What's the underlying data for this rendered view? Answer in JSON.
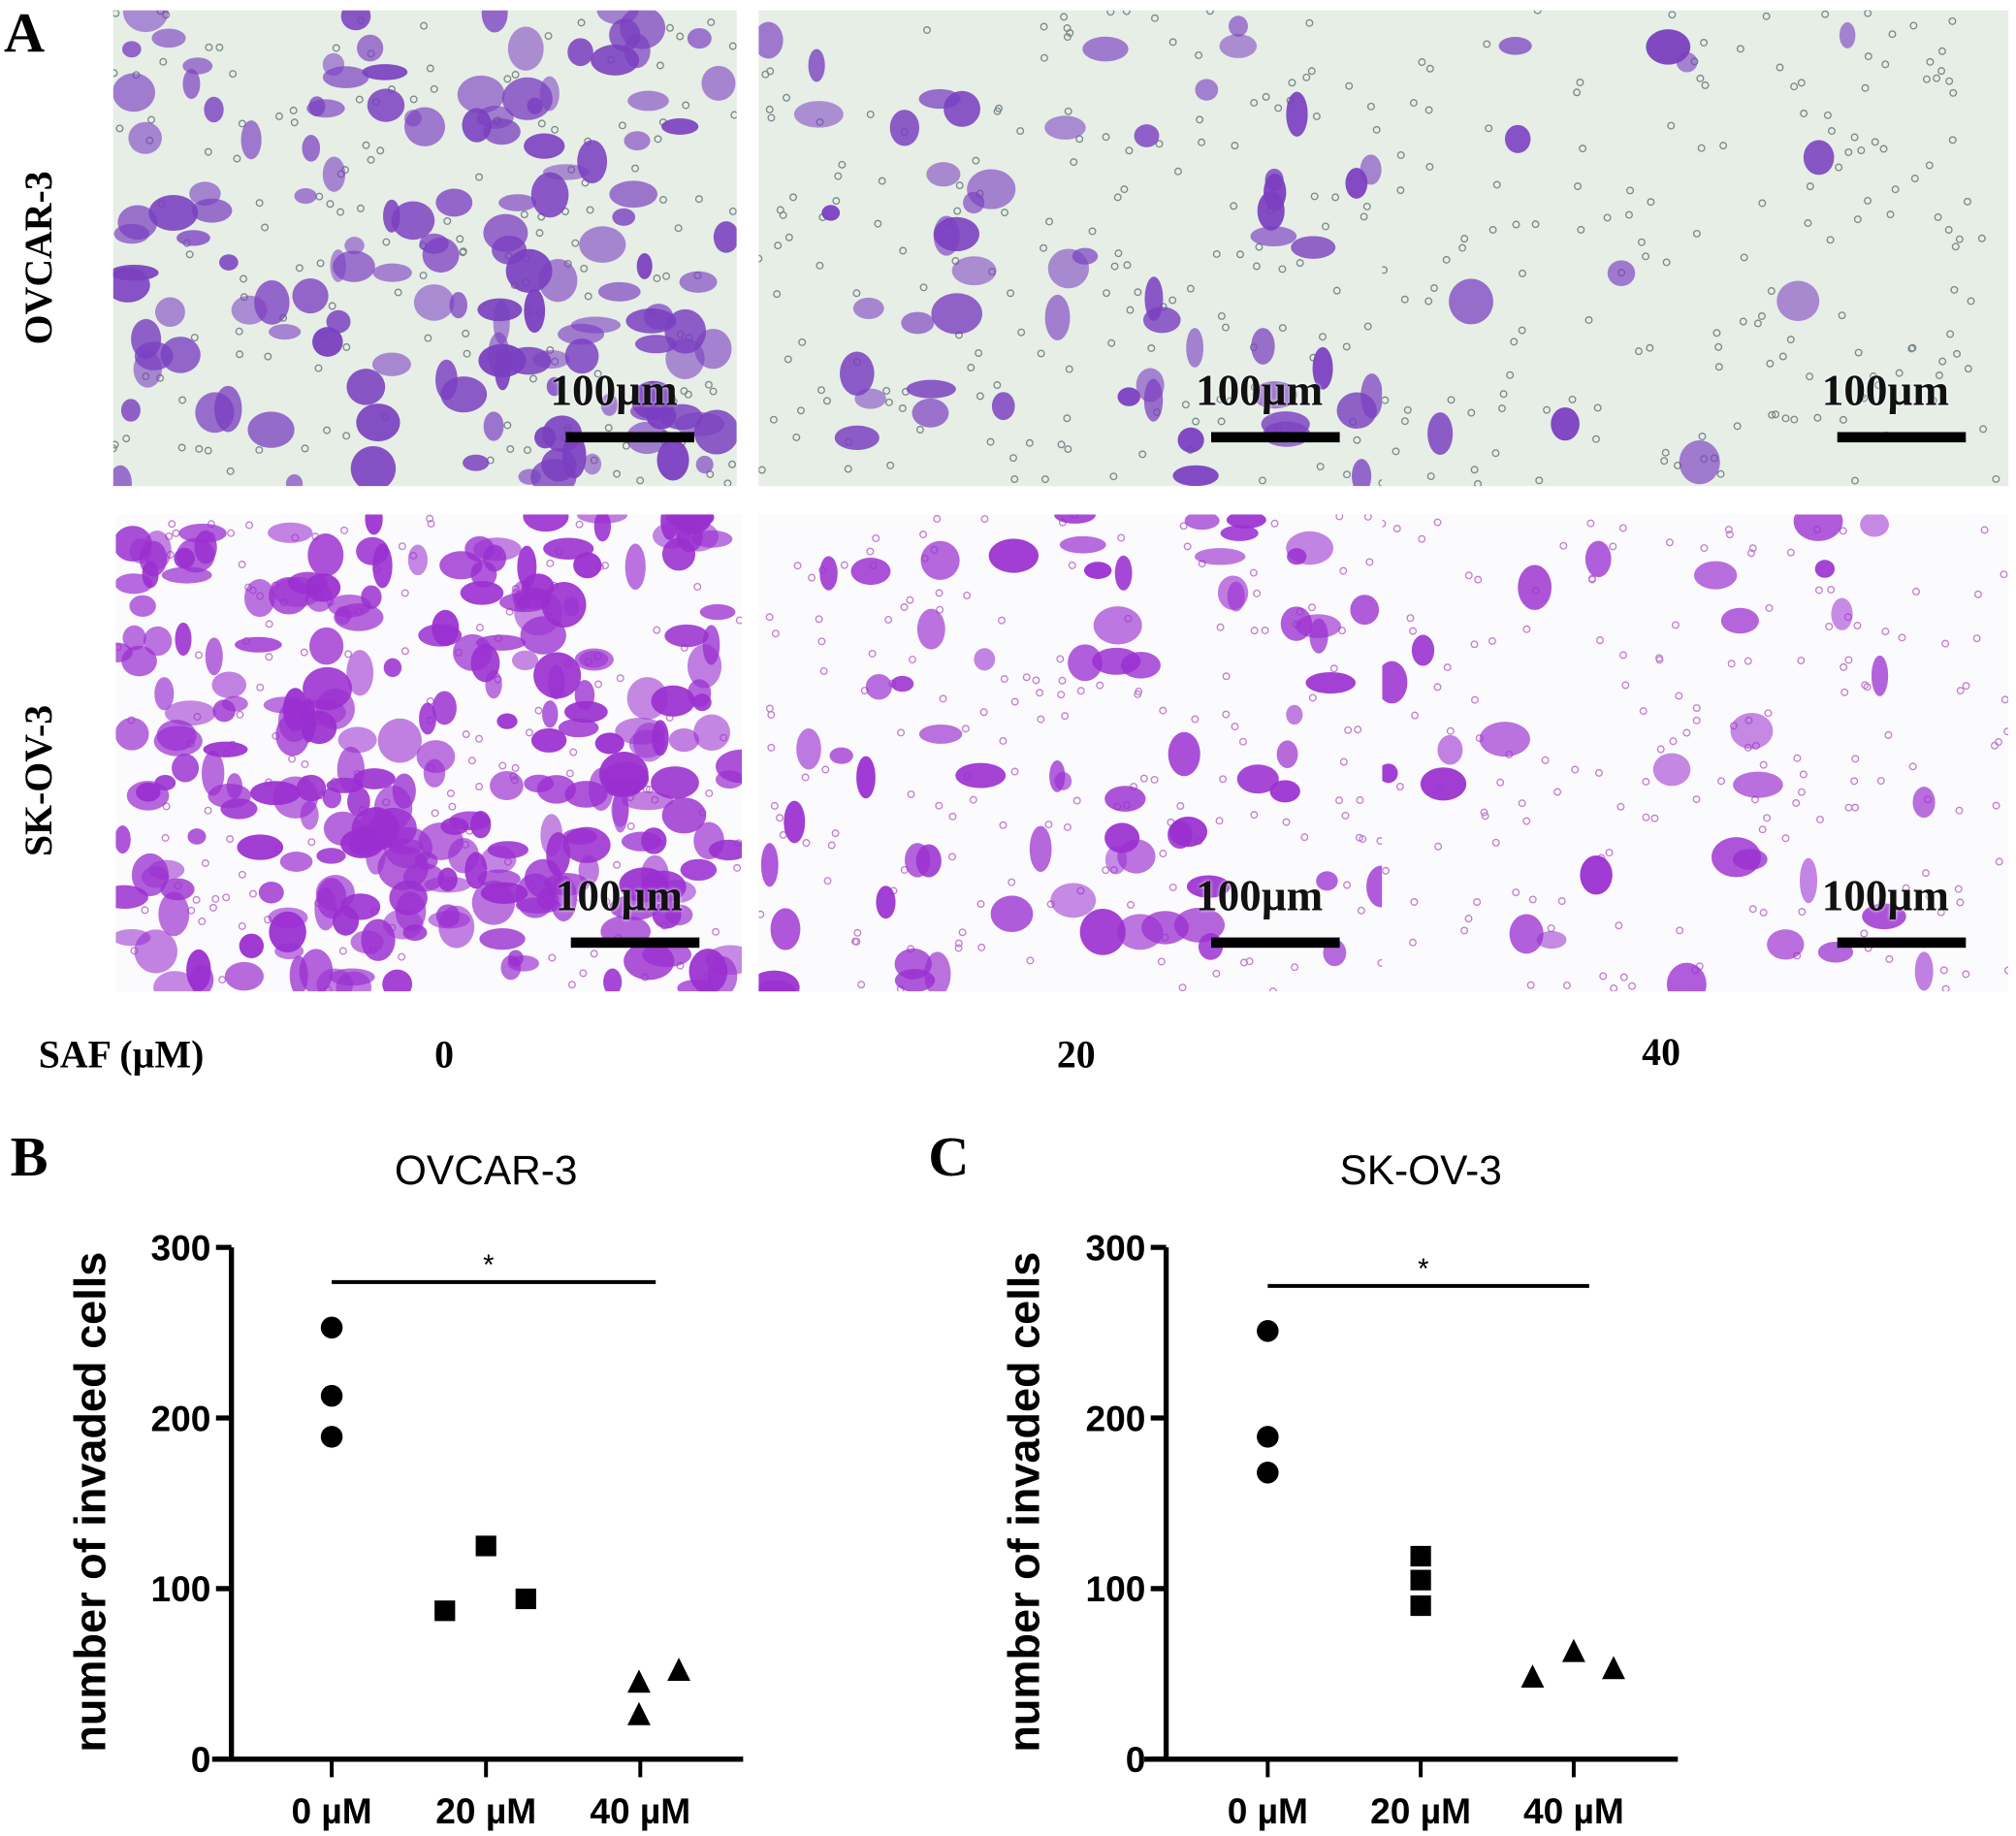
{
  "panel_letters": {
    "a": "A",
    "b": "B",
    "c": "C"
  },
  "micrographs": {
    "row_labels": [
      "OVCAR-3",
      "SK-OV-3"
    ],
    "scale_bar": "100µm",
    "treatment_label": "SAF (µM)",
    "concentrations": [
      "0",
      "20",
      "40"
    ],
    "colors": {
      "ovcar_bg": "#e6eee6",
      "ovcar_cell": "#7a3fc0",
      "skov_bg": "#fbfafc",
      "skov_cell": "#9a2fd0"
    }
  },
  "chart_data": [
    {
      "type": "scatter",
      "title": "OVCAR-3",
      "ylabel": "number of invaded cells",
      "xlabel": "",
      "categories": [
        "0 µM",
        "20 µM",
        "40 µM"
      ],
      "ylim": [
        0,
        300
      ],
      "yticks": [
        "0",
        "100",
        "200",
        "300"
      ],
      "series": [
        {
          "name": "0 µM",
          "marker": "circle",
          "values": [
            253,
            213,
            189
          ]
        },
        {
          "name": "20 µM",
          "marker": "square",
          "values": [
            87,
            125,
            94
          ]
        },
        {
          "name": "40 µM",
          "marker": "triangle",
          "values": [
            45,
            26,
            52
          ]
        }
      ],
      "significance": {
        "from": "0 µM",
        "to": "40 µM",
        "label": "*"
      }
    },
    {
      "type": "scatter",
      "title": "SK-OV-3",
      "ylabel": "number of invaded cells",
      "xlabel": "",
      "categories": [
        "0 µM",
        "20 µM",
        "40 µM"
      ],
      "ylim": [
        0,
        300
      ],
      "yticks": [
        "0",
        "100",
        "200",
        "300"
      ],
      "series": [
        {
          "name": "0 µM",
          "marker": "circle",
          "values": [
            251,
            189,
            168
          ]
        },
        {
          "name": "20 µM",
          "marker": "square",
          "values": [
            119,
            105,
            90
          ]
        },
        {
          "name": "40 µM",
          "marker": "triangle",
          "values": [
            48,
            63,
            53
          ]
        }
      ],
      "significance": {
        "from": "0 µM",
        "to": "40 µM",
        "label": "*"
      }
    }
  ]
}
